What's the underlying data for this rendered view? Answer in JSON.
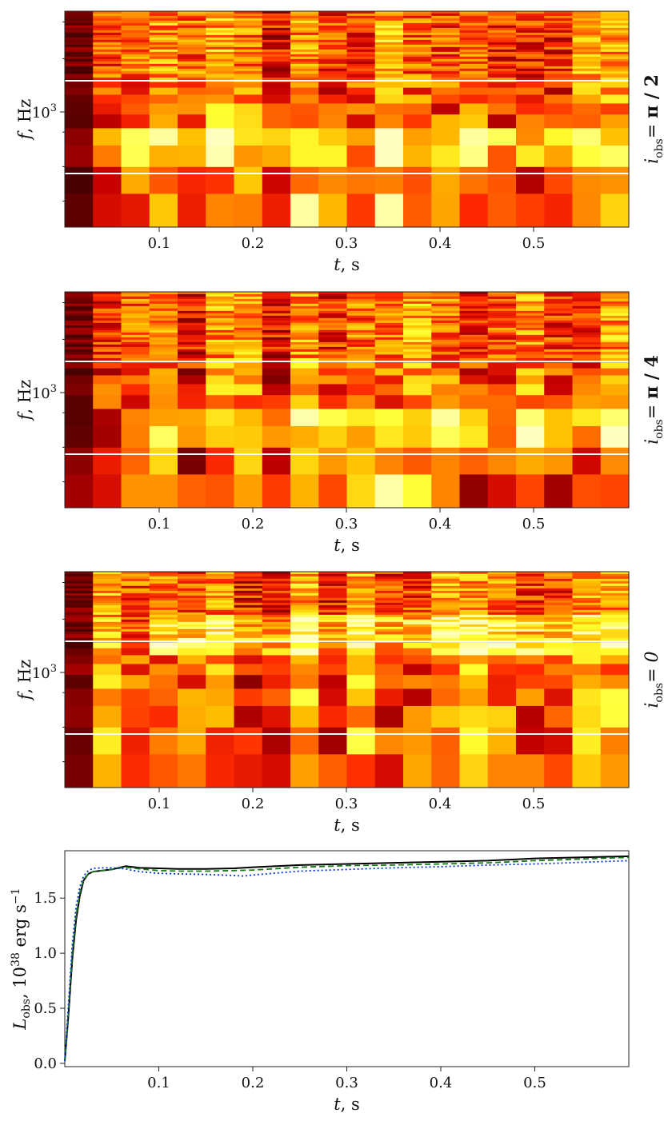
{
  "chart_data": [
    {
      "type": "heatmap",
      "panel_label": "i_obs = π / 2",
      "label_main": "i",
      "label_sub": "obs",
      "label_eq": "=",
      "label_value": "π / 2",
      "xlabel": "t, s",
      "ylabel": "f, Hz",
      "xlim": [
        0.0,
        0.6
      ],
      "x_ticks": [
        "0.1",
        "0.2",
        "0.3",
        "0.4",
        "0.5"
      ],
      "y_tick": "10^3",
      "y_scale": "log",
      "n_columns": 20,
      "reference_lines": [
        "upper white line",
        "lower white line"
      ],
      "colormap": [
        "#3a0000",
        "#7a0000",
        "#c40000",
        "#ff2a00",
        "#ff7a00",
        "#ffc000",
        "#ffff30",
        "#ffffc0"
      ],
      "seed": 11
    },
    {
      "type": "heatmap",
      "panel_label": "i_obs = π / 4",
      "label_main": "i",
      "label_sub": "obs",
      "label_eq": "=",
      "label_value": "π / 4",
      "xlabel": "t, s",
      "ylabel": "f, Hz",
      "xlim": [
        0.0,
        0.6
      ],
      "x_ticks": [
        "0.1",
        "0.2",
        "0.3",
        "0.4",
        "0.5"
      ],
      "y_tick": "10^3",
      "y_scale": "log",
      "n_columns": 20,
      "colormap": [
        "#3a0000",
        "#7a0000",
        "#c40000",
        "#ff2a00",
        "#ff7a00",
        "#ffc000",
        "#ffff30",
        "#ffffc0"
      ],
      "seed": 29
    },
    {
      "type": "heatmap",
      "panel_label": "i_obs = 0",
      "label_main": "i",
      "label_sub": "obs",
      "label_eq": "=",
      "label_value": "0",
      "xlabel": "t, s",
      "ylabel": "f, Hz",
      "xlim": [
        0.0,
        0.6
      ],
      "x_ticks": [
        "0.1",
        "0.2",
        "0.3",
        "0.4",
        "0.5"
      ],
      "y_tick": "10^3",
      "y_scale": "log",
      "n_columns": 20,
      "colormap": [
        "#3a0000",
        "#7a0000",
        "#c40000",
        "#ff2a00",
        "#ff7a00",
        "#ffc000",
        "#ffff30",
        "#ffffc0"
      ],
      "seed": 47
    },
    {
      "type": "line",
      "xlabel": "t, s",
      "ylabel_main": "L",
      "ylabel_sub": "obs",
      "ylabel_rest": ", 10",
      "ylabel_exp": "38",
      "ylabel_unit": " erg s",
      "ylabel_unit_exp": "−1",
      "xlim": [
        0.0,
        0.6
      ],
      "ylim": [
        -0.03,
        1.93
      ],
      "x_ticks": [
        "0.1",
        "0.2",
        "0.3",
        "0.4",
        "0.5"
      ],
      "y_ticks": [
        "0.0",
        "0.5",
        "1.0",
        "1.5"
      ],
      "series": [
        {
          "style": "solid",
          "color": "#000000",
          "x": [
            0.0,
            0.004,
            0.008,
            0.012,
            0.016,
            0.02,
            0.025,
            0.03,
            0.04,
            0.05,
            0.06,
            0.065,
            0.07,
            0.08,
            0.1,
            0.12,
            0.15,
            0.18,
            0.2,
            0.25,
            0.3,
            0.35,
            0.4,
            0.45,
            0.5,
            0.55,
            0.6
          ],
          "y": [
            0.02,
            0.45,
            0.95,
            1.3,
            1.52,
            1.66,
            1.72,
            1.74,
            1.75,
            1.76,
            1.78,
            1.79,
            1.785,
            1.775,
            1.77,
            1.765,
            1.765,
            1.77,
            1.78,
            1.8,
            1.81,
            1.82,
            1.83,
            1.84,
            1.86,
            1.87,
            1.88
          ]
        },
        {
          "style": "dashed",
          "color": "#1a7a1a",
          "x": [
            0.0,
            0.004,
            0.008,
            0.012,
            0.016,
            0.02,
            0.025,
            0.03,
            0.04,
            0.05,
            0.06,
            0.065,
            0.07,
            0.08,
            0.1,
            0.12,
            0.15,
            0.18,
            0.2,
            0.25,
            0.3,
            0.35,
            0.4,
            0.45,
            0.5,
            0.55,
            0.6
          ],
          "y": [
            0.02,
            0.48,
            1.0,
            1.34,
            1.55,
            1.67,
            1.72,
            1.74,
            1.75,
            1.76,
            1.775,
            1.78,
            1.775,
            1.765,
            1.75,
            1.745,
            1.745,
            1.75,
            1.755,
            1.78,
            1.795,
            1.8,
            1.81,
            1.82,
            1.84,
            1.855,
            1.87
          ]
        },
        {
          "style": "dotted",
          "color": "#0033cc",
          "x": [
            0.0,
            0.004,
            0.008,
            0.012,
            0.016,
            0.02,
            0.025,
            0.03,
            0.04,
            0.05,
            0.06,
            0.065,
            0.07,
            0.08,
            0.1,
            0.12,
            0.15,
            0.18,
            0.19,
            0.2,
            0.25,
            0.3,
            0.35,
            0.4,
            0.45,
            0.5,
            0.55,
            0.6
          ],
          "y": [
            0.02,
            0.55,
            1.08,
            1.42,
            1.6,
            1.7,
            1.75,
            1.77,
            1.775,
            1.775,
            1.77,
            1.765,
            1.755,
            1.74,
            1.725,
            1.72,
            1.715,
            1.705,
            1.7,
            1.71,
            1.745,
            1.76,
            1.775,
            1.785,
            1.8,
            1.81,
            1.825,
            1.84
          ]
        }
      ]
    }
  ]
}
